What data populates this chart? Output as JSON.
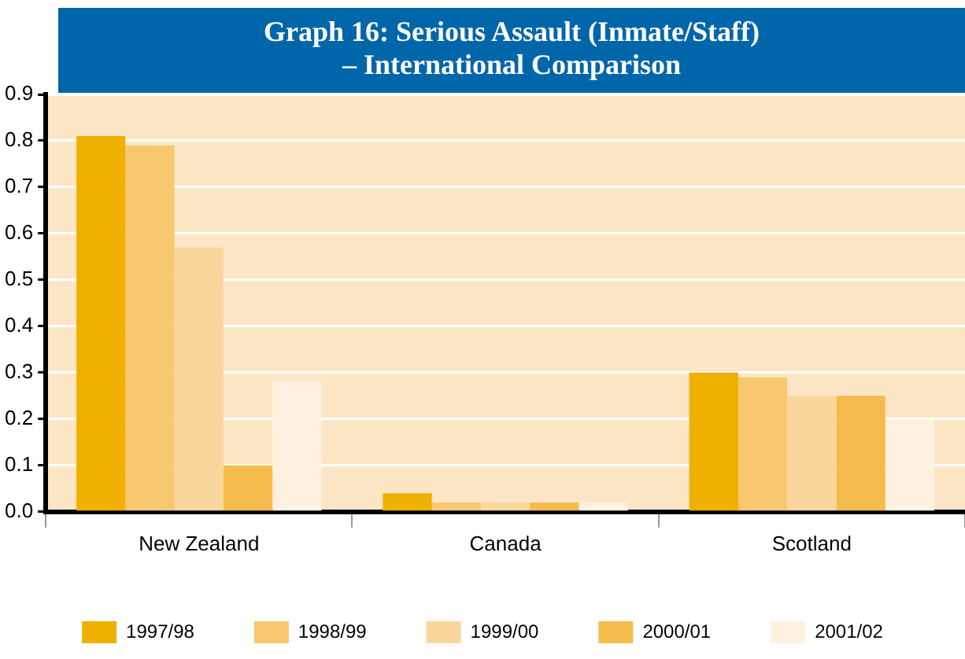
{
  "chart_data": {
    "type": "bar",
    "title": "Graph 16: Serious Assault (Inmate/Staff)\n– International Comparison",
    "categories": [
      "New Zealand",
      "Canada",
      "Scotland"
    ],
    "series": [
      {
        "name": "1997/98",
        "color": "#f0b000",
        "values": [
          0.81,
          0.04,
          0.3
        ]
      },
      {
        "name": "1998/99",
        "color": "#f7c870",
        "values": [
          0.79,
          0.02,
          0.29
        ]
      },
      {
        "name": "1999/00",
        "color": "#f9d79c",
        "values": [
          0.57,
          0.02,
          0.25
        ]
      },
      {
        "name": "2000/01",
        "color": "#f5bc4c",
        "values": [
          0.1,
          0.02,
          0.25
        ]
      },
      {
        "name": "2001/02",
        "color": "#fef1df",
        "values": [
          0.28,
          0.02,
          0.2
        ]
      }
    ],
    "ylim": [
      0,
      0.9
    ],
    "yticks": [
      {
        "value": 0,
        "label": "0.0"
      },
      0.1,
      0.2,
      0.3,
      0.4,
      0.5,
      0.6,
      0.7,
      0.8,
      0.9
    ],
    "grid": "y",
    "legend": "bottom"
  }
}
